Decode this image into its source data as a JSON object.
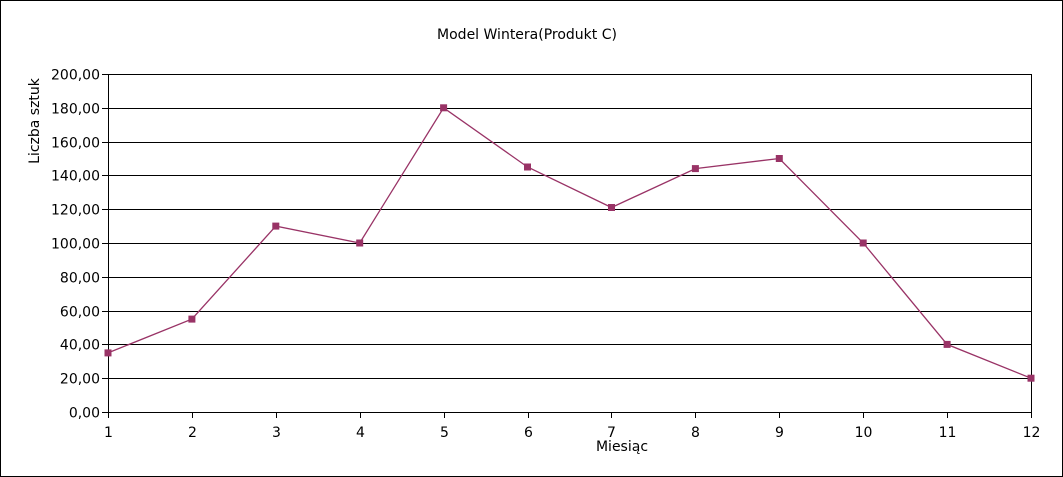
{
  "chart_data": {
    "type": "line",
    "title": "Model Wintera(Produkt C)",
    "xlabel": "Miesiąc",
    "ylabel": "Liczba sztuk",
    "x": [
      1,
      2,
      3,
      4,
      5,
      6,
      7,
      8,
      9,
      10,
      11,
      12
    ],
    "x_tick_labels": [
      "1",
      "2",
      "3",
      "4",
      "5",
      "6",
      "7",
      "8",
      "9",
      "10",
      "11",
      "12"
    ],
    "ylim": [
      0,
      200
    ],
    "y_tick_values": [
      0,
      20,
      40,
      60,
      80,
      100,
      120,
      140,
      160,
      180,
      200
    ],
    "y_tick_labels": [
      "0,00",
      "20,00",
      "40,00",
      "60,00",
      "80,00",
      "100,00",
      "120,00",
      "140,00",
      "160,00",
      "180,00",
      "200,00"
    ],
    "grid": true,
    "legend": "none",
    "series": [
      {
        "values": [
          35,
          55,
          110,
          100,
          180,
          145,
          121,
          144,
          150,
          100,
          40,
          20
        ],
        "color": "#993366",
        "marker": "square"
      }
    ]
  }
}
